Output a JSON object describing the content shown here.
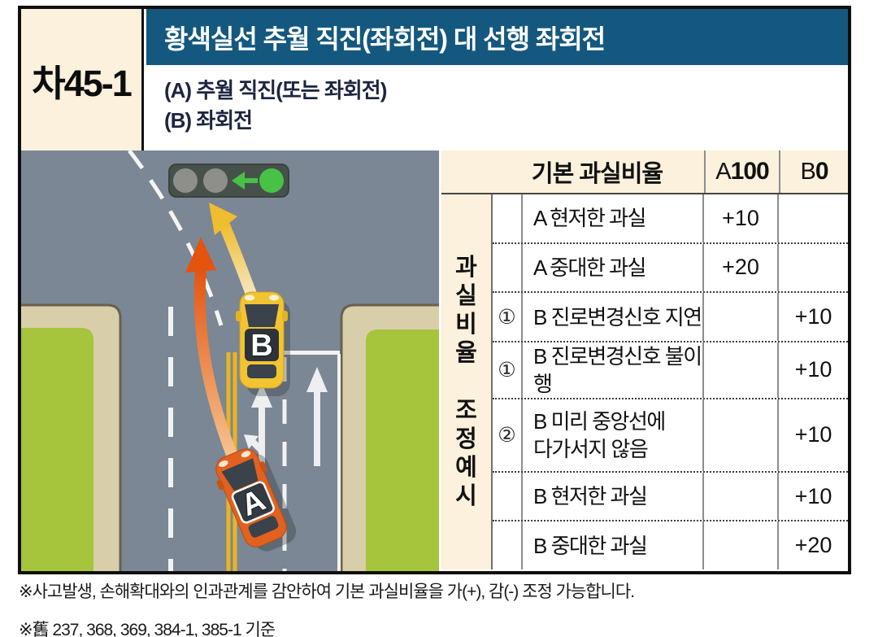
{
  "title_box": {
    "case_id": "차45-1"
  },
  "header": {
    "title": "황색실선 추월 직진(좌회전) 대 선행 좌회전",
    "vehicle_a_desc": "(A) 추월 직진(또는 좌회전)",
    "vehicle_b_desc": "(B) 좌회전"
  },
  "table": {
    "header": {
      "label": "기본 과실비율",
      "a_prefix": "A",
      "a_value": "100",
      "b_prefix": "B",
      "b_value": "0"
    },
    "side_label_top": [
      "과",
      "실",
      "비",
      "율"
    ],
    "side_label_bottom": [
      "조",
      "정",
      "예",
      "시"
    ],
    "rows": [
      {
        "num": "",
        "label_lines": [
          "A 현저한 과실"
        ],
        "a": "+10",
        "b": ""
      },
      {
        "num": "",
        "label_lines": [
          "A 중대한 과실"
        ],
        "a": "+20",
        "b": ""
      },
      {
        "num": "①",
        "label_lines": [
          "B 진로변경신호 지연"
        ],
        "a": "",
        "b": "+10"
      },
      {
        "num": "①",
        "label_lines": [
          "B 진로변경신호 불이행"
        ],
        "a": "",
        "b": "+10"
      },
      {
        "num": "②",
        "label_lines": [
          "B 미리 중앙선에",
          "다가서지 않음"
        ],
        "a": "",
        "b": "+10"
      },
      {
        "num": "",
        "label_lines": [
          "B 현저한 과실"
        ],
        "a": "",
        "b": "+10"
      },
      {
        "num": "",
        "label_lines": [
          "B 중대한 과실"
        ],
        "a": "",
        "b": "+20"
      }
    ]
  },
  "diagram": {
    "car_a_label": "A",
    "car_b_label": "B",
    "traffic_signal": "green-left-arrow-and-green-light",
    "colors": {
      "road": "#7b8794",
      "grass": "#a6c43c",
      "curb": "#d8cfaa",
      "center_line_yellow": "#e9b422",
      "car_a_body": "#e2611f",
      "car_b_body": "#f2c431",
      "arrow_a": "#e4540f",
      "arrow_b": "#efbd30",
      "signal_green": "#47c247"
    }
  },
  "footnotes": {
    "note1": "※사고발생, 손해확대와의 인과관계를 감안하여 기본 과실비율을 가(+), 감(-) 조정 가능합니다.",
    "note2": "※舊 237, 368, 369, 384-1, 385-1 기준"
  },
  "colors": {
    "header_blue": "#15587f",
    "cream": "#fbf1dc",
    "navy_text": "#1d2540"
  }
}
